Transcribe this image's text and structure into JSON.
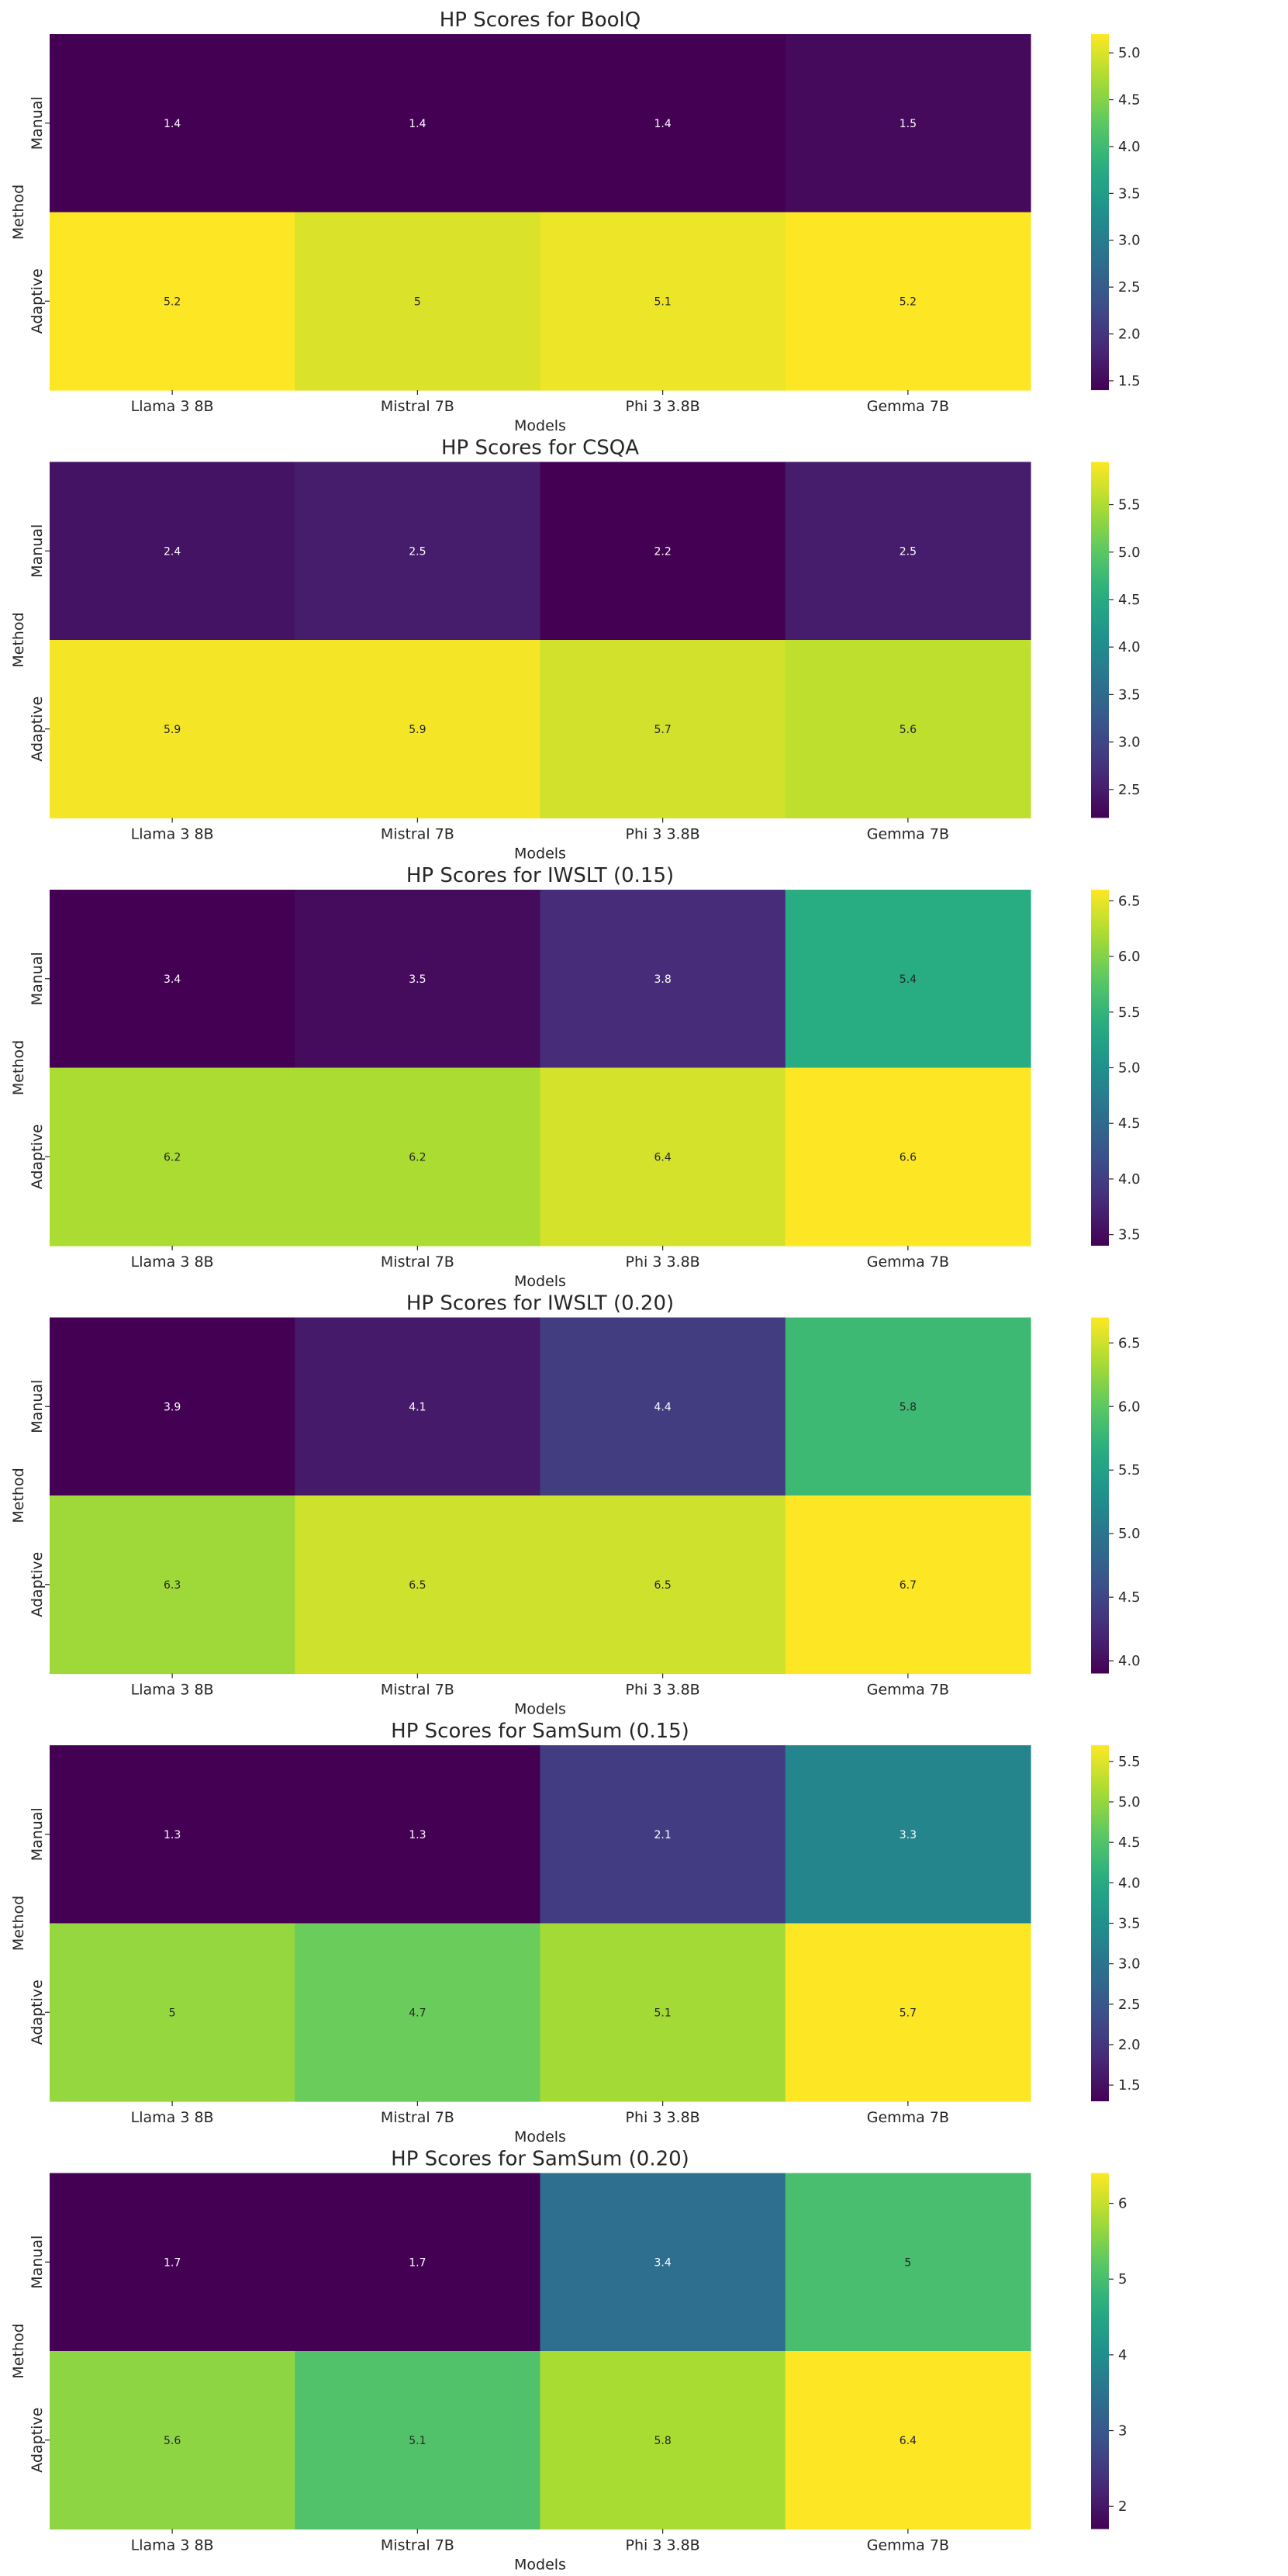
{
  "figure": {
    "background": "#ffffff",
    "colormap": "viridis"
  },
  "chart_data": [
    {
      "type": "heatmap",
      "title": "HP Scores for BoolQ",
      "xlabel": "Models",
      "ylabel": "Method",
      "x_categories": [
        "Llama 3 8B",
        "Mistral 7B",
        "Phi 3 3.8B",
        "Gemma 7B"
      ],
      "y_categories": [
        "Manual",
        "Adaptive"
      ],
      "values": [
        [
          1.4,
          1.4,
          1.4,
          1.5
        ],
        [
          5.2,
          5,
          5.1,
          5.2
        ]
      ],
      "cell_labels": [
        [
          "1.4",
          "1.4",
          "1.4",
          "1.5"
        ],
        [
          "5.2",
          "5",
          "5.1",
          "5.2"
        ]
      ],
      "colorbar": {
        "range": [
          1.4,
          5.2
        ],
        "ticks": [
          1.5,
          2.0,
          2.5,
          3.0,
          3.5,
          4.0,
          4.5,
          5.0
        ],
        "tick_labels": [
          "1.5",
          "2.0",
          "2.5",
          "3.0",
          "3.5",
          "4.0",
          "4.5",
          "5.0"
        ]
      }
    },
    {
      "type": "heatmap",
      "title": "HP Scores for CSQA",
      "xlabel": "Models",
      "ylabel": "Method",
      "x_categories": [
        "Llama 3 8B",
        "Mistral 7B",
        "Phi 3 3.8B",
        "Gemma 7B"
      ],
      "y_categories": [
        "Manual",
        "Adaptive"
      ],
      "values": [
        [
          2.4,
          2.5,
          2.2,
          2.5
        ],
        [
          5.9,
          5.9,
          5.7,
          5.6
        ]
      ],
      "cell_labels": [
        [
          "2.4",
          "2.5",
          "2.2",
          "2.5"
        ],
        [
          "5.9",
          "5.9",
          "5.7",
          "5.6"
        ]
      ],
      "colorbar": {
        "range": [
          2.2,
          5.95
        ],
        "ticks": [
          2.5,
          3.0,
          3.5,
          4.0,
          4.5,
          5.0,
          5.5
        ],
        "tick_labels": [
          "2.5",
          "3.0",
          "3.5",
          "4.0",
          "4.5",
          "5.0",
          "5.5"
        ]
      }
    },
    {
      "type": "heatmap",
      "title": "HP Scores for IWSLT (0.15)",
      "xlabel": "Models",
      "ylabel": "Method",
      "x_categories": [
        "Llama 3 8B",
        "Mistral 7B",
        "Phi 3 3.8B",
        "Gemma 7B"
      ],
      "y_categories": [
        "Manual",
        "Adaptive"
      ],
      "values": [
        [
          3.4,
          3.5,
          3.8,
          5.4
        ],
        [
          6.2,
          6.2,
          6.4,
          6.6
        ]
      ],
      "cell_labels": [
        [
          "3.4",
          "3.5",
          "3.8",
          "5.4"
        ],
        [
          "6.2",
          "6.2",
          "6.4",
          "6.6"
        ]
      ],
      "colorbar": {
        "range": [
          3.4,
          6.6
        ],
        "ticks": [
          3.5,
          4.0,
          4.5,
          5.0,
          5.5,
          6.0,
          6.5
        ],
        "tick_labels": [
          "3.5",
          "4.0",
          "4.5",
          "5.0",
          "5.5",
          "6.0",
          "6.5"
        ]
      }
    },
    {
      "type": "heatmap",
      "title": "HP Scores for IWSLT (0.20)",
      "xlabel": "Models",
      "ylabel": "Method",
      "x_categories": [
        "Llama 3 8B",
        "Mistral 7B",
        "Phi 3 3.8B",
        "Gemma 7B"
      ],
      "y_categories": [
        "Manual",
        "Adaptive"
      ],
      "values": [
        [
          3.9,
          4.1,
          4.4,
          5.8
        ],
        [
          6.3,
          6.5,
          6.5,
          6.7
        ]
      ],
      "cell_labels": [
        [
          "3.9",
          "4.1",
          "4.4",
          "5.8"
        ],
        [
          "6.3",
          "6.5",
          "6.5",
          "6.7"
        ]
      ],
      "colorbar": {
        "range": [
          3.9,
          6.7
        ],
        "ticks": [
          4.0,
          4.5,
          5.0,
          5.5,
          6.0,
          6.5
        ],
        "tick_labels": [
          "4.0",
          "4.5",
          "5.0",
          "5.5",
          "6.0",
          "6.5"
        ]
      }
    },
    {
      "type": "heatmap",
      "title": "HP Scores for SamSum (0.15)",
      "xlabel": "Models",
      "ylabel": "Method",
      "x_categories": [
        "Llama 3 8B",
        "Mistral 7B",
        "Phi 3 3.8B",
        "Gemma 7B"
      ],
      "y_categories": [
        "Manual",
        "Adaptive"
      ],
      "values": [
        [
          1.3,
          1.3,
          2.1,
          3.3
        ],
        [
          5,
          4.7,
          5.1,
          5.7
        ]
      ],
      "cell_labels": [
        [
          "1.3",
          "1.3",
          "2.1",
          "3.3"
        ],
        [
          "5",
          "4.7",
          "5.1",
          "5.7"
        ]
      ],
      "colorbar": {
        "range": [
          1.3,
          5.7
        ],
        "ticks": [
          1.5,
          2.0,
          2.5,
          3.0,
          3.5,
          4.0,
          4.5,
          5.0,
          5.5
        ],
        "tick_labels": [
          "1.5",
          "2.0",
          "2.5",
          "3.0",
          "3.5",
          "4.0",
          "4.5",
          "5.0",
          "5.5"
        ]
      }
    },
    {
      "type": "heatmap",
      "title": "HP Scores for SamSum (0.20)",
      "xlabel": "Models",
      "ylabel": "Method",
      "x_categories": [
        "Llama 3 8B",
        "Mistral 7B",
        "Phi 3 3.8B",
        "Gemma 7B"
      ],
      "y_categories": [
        "Manual",
        "Adaptive"
      ],
      "values": [
        [
          1.7,
          1.7,
          3.4,
          5
        ],
        [
          5.6,
          5.1,
          5.8,
          6.4
        ]
      ],
      "cell_labels": [
        [
          "1.7",
          "1.7",
          "3.4",
          "5"
        ],
        [
          "5.6",
          "5.1",
          "5.8",
          "6.4"
        ]
      ],
      "colorbar": {
        "range": [
          1.7,
          6.4
        ],
        "ticks": [
          2,
          3,
          4,
          5,
          6
        ],
        "tick_labels": [
          "2",
          "3",
          "4",
          "5",
          "6"
        ]
      }
    }
  ]
}
